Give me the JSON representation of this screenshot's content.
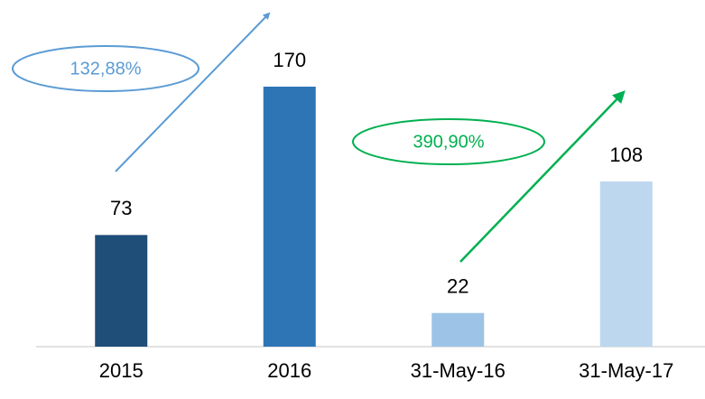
{
  "chart_data": {
    "type": "bar",
    "categories": [
      "2015",
      "2016",
      "31-May-16",
      "31-May-17"
    ],
    "values": [
      73,
      170,
      22,
      108
    ],
    "colors": [
      "#1f4e79",
      "#2e75b6",
      "#9dc3e6",
      "#bdd7ee"
    ],
    "ylim": [
      0,
      170
    ],
    "annotations": [
      {
        "text": "132,88%",
        "color": "#5b9bd5"
      },
      {
        "text": "390,90%",
        "color": "#00b050"
      }
    ]
  }
}
